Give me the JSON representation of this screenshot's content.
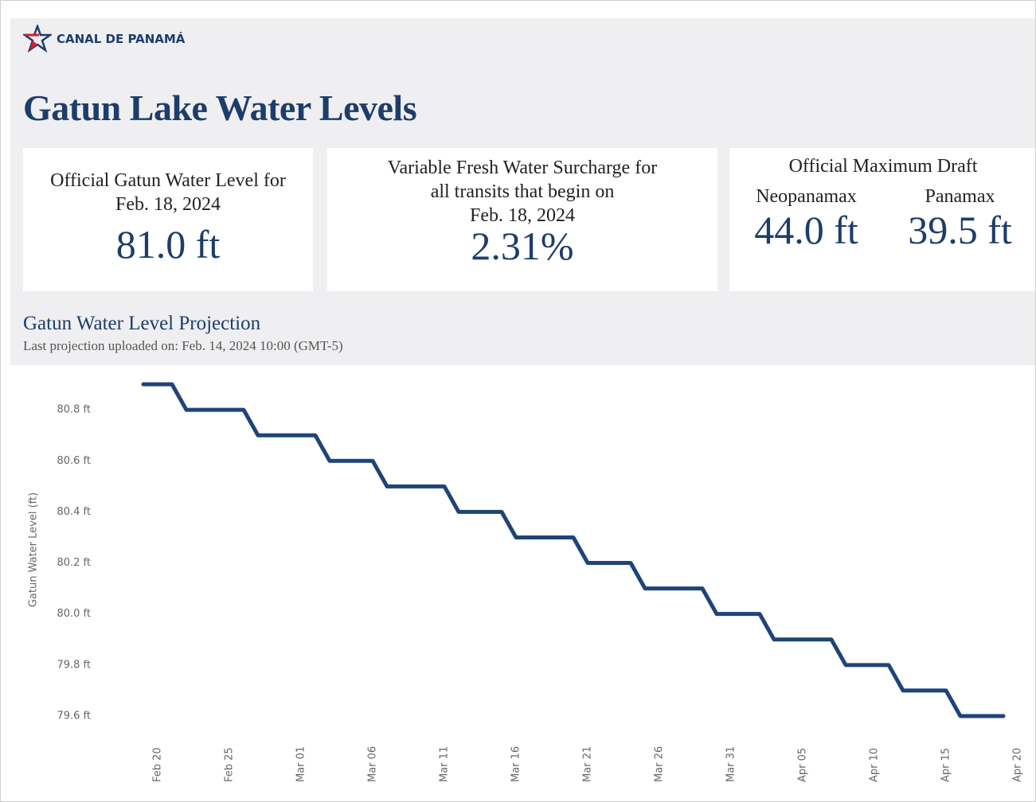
{
  "logo": "CANAL DE PANAMÁ",
  "title": "Gatun Lake Water Levels",
  "cards": [
    {
      "label": [
        "Official Gatun Water Level for",
        "Feb. 18, 2024"
      ],
      "value": "81.0 ft"
    },
    {
      "label": [
        "Variable Fresh Water Surcharge for",
        "all transits that begin on",
        "Feb. 18, 2024"
      ],
      "value": "2.31%"
    }
  ],
  "draft": {
    "label": "Official Maximum Draft",
    "items": [
      {
        "name": "Neopanamax",
        "value": "44.0 ft"
      },
      {
        "name": "Panamax",
        "value": "39.5 ft"
      }
    ]
  },
  "chart_data": {
    "type": "line",
    "title": "Gatun Water Level Projection",
    "subtitle": "Last projection uploaded on: Feb. 14, 2024 10:00 (GMT-5)",
    "y_label": "Gatun Water Level (ft)",
    "x": [
      "Feb 19",
      "Feb 21",
      "Feb 22",
      "Feb 26",
      "Feb 27",
      "Mar 02",
      "Mar 03",
      "Mar 06",
      "Mar 07",
      "Mar 11",
      "Mar 12",
      "Mar 15",
      "Mar 16",
      "Mar 20",
      "Mar 21",
      "Mar 24",
      "Mar 25",
      "Mar 29",
      "Mar 30",
      "Apr 02",
      "Apr 03",
      "Apr 07",
      "Apr 08",
      "Apr 11",
      "Apr 12",
      "Apr 15",
      "Apr 16",
      "Apr 19"
    ],
    "series": [
      {
        "color": "#1f4477",
        "values": [
          80.9,
          80.9,
          80.8,
          80.8,
          80.7,
          80.7,
          80.6,
          80.6,
          80.5,
          80.5,
          80.4,
          80.4,
          80.3,
          80.3,
          80.2,
          80.2,
          80.1,
          80.1,
          80.0,
          80.0,
          79.9,
          79.9,
          79.8,
          79.8,
          79.7,
          79.7,
          79.6,
          79.6
        ]
      }
    ],
    "xlim": [
      "Feb 17",
      "Apr 21"
    ],
    "xticks": [
      "Feb 20",
      "Feb 25",
      "Mar 01",
      "Mar 06",
      "Mar 11",
      "Mar 16",
      "Mar 21",
      "Mar 26",
      "Mar 31",
      "Apr 05",
      "Apr 10",
      "Apr 15",
      "Apr 20"
    ],
    "ylim": [
      79.55,
      80.95
    ],
    "yticks": [
      {
        "value": 79.6,
        "label": "79.6 ft"
      },
      {
        "value": 79.8,
        "label": "79.8 ft"
      },
      {
        "value": 80.0,
        "label": "80.0 ft"
      },
      {
        "value": 80.2,
        "label": "80.2 ft"
      },
      {
        "value": 80.4,
        "label": "80.4 ft"
      },
      {
        "value": 80.6,
        "label": "80.6 ft"
      },
      {
        "value": 80.8,
        "label": "80.8 ft"
      }
    ],
    "grid": false
  }
}
